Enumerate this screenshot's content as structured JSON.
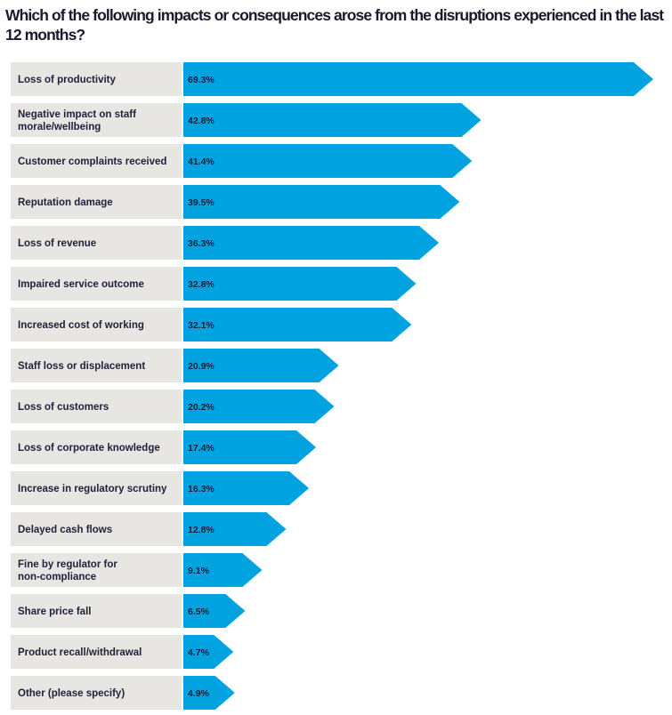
{
  "chart_data": {
    "type": "bar",
    "title": "Which of the following impacts or consequences arose from the disruptions experienced in the last 12 months?",
    "orientation": "horizontal",
    "categories": [
      "Loss of productivity",
      "Negative impact on staff morale/wellbeing",
      "Customer complaints received",
      "Reputation damage",
      "Loss of revenue",
      "Impaired service outcome",
      "Increased cost of working",
      "Staff loss or displacement",
      "Loss of customers",
      "Loss of corporate knowledge",
      "Increase in regulatory scrutiny",
      "Delayed cash flows",
      "Fine by regulator for non-compliance",
      "Share price fall",
      "Product recall/withdrawal",
      "Other (please specify)"
    ],
    "category_lines": [
      [
        "Loss of productivity"
      ],
      [
        "Negative impact on staff",
        "morale/wellbeing"
      ],
      [
        "Customer complaints received"
      ],
      [
        "Reputation damage"
      ],
      [
        "Loss of revenue"
      ],
      [
        "Impaired service outcome"
      ],
      [
        "Increased cost of working"
      ],
      [
        "Staff loss or displacement"
      ],
      [
        "Loss of customers"
      ],
      [
        "Loss of corporate knowledge"
      ],
      [
        "Increase in regulatory scrutiny"
      ],
      [
        "Delayed cash flows"
      ],
      [
        "Fine by regulator for",
        "non-compliance"
      ],
      [
        "Share price fall"
      ],
      [
        "Product recall/withdrawal"
      ],
      [
        "Other (please specify)"
      ]
    ],
    "values": [
      69.3,
      42.8,
      41.4,
      39.5,
      36.3,
      32.8,
      32.1,
      20.9,
      20.2,
      17.4,
      16.3,
      12.8,
      9.1,
      6.5,
      4.7,
      4.9
    ],
    "value_labels": [
      "69.3%",
      "42.8%",
      "41.4%",
      "39.5%",
      "36.3%",
      "32.8%",
      "32.1%",
      "20.9%",
      "20.2%",
      "17.4%",
      "16.3%",
      "12.8%",
      "9.1%",
      "6.5%",
      "4.7%",
      "4.9%"
    ],
    "unit": "%",
    "xlim": [
      0,
      69.3
    ],
    "grid": false,
    "legend": "none",
    "colors": {
      "bar": "#00a3e0",
      "label_background": "#e8e6e3",
      "text": "#1f1f3a"
    }
  }
}
